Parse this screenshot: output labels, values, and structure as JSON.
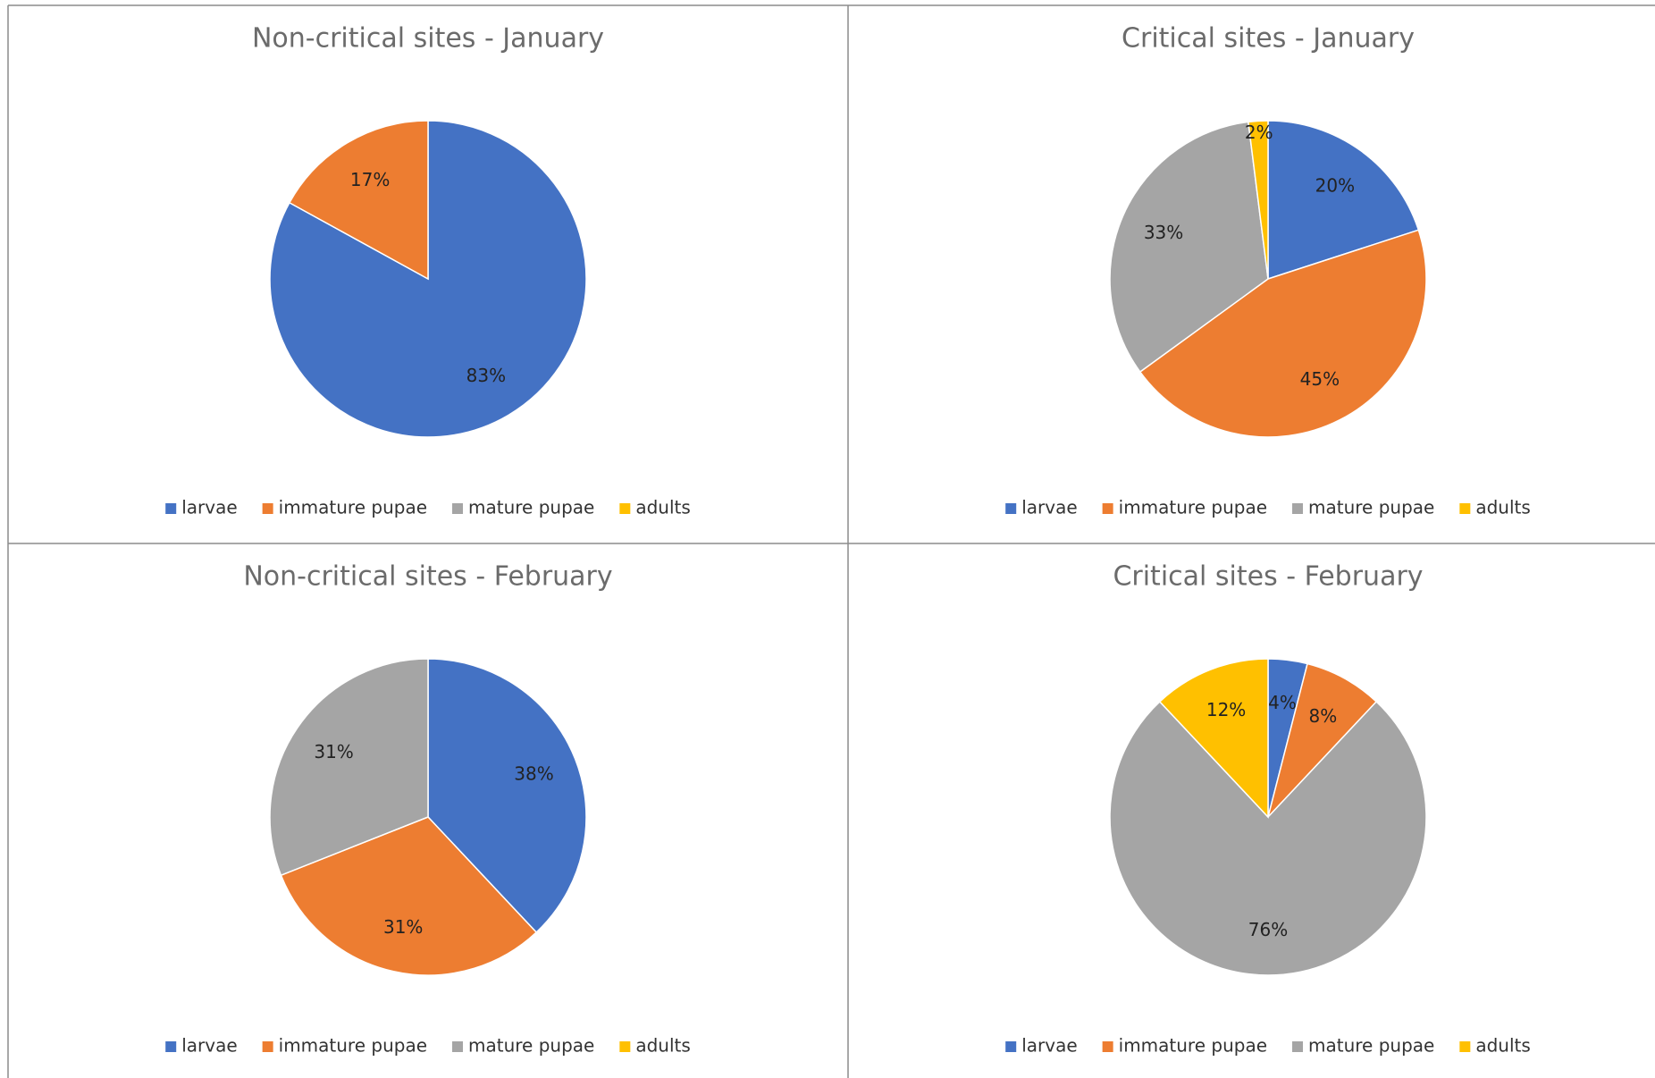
{
  "chart_data": [
    {
      "type": "pie",
      "title": "Non-critical sites - January",
      "categories": [
        "larvae",
        "immature pupae",
        "mature pupae",
        "adults"
      ],
      "values": [
        83,
        17,
        null,
        null
      ],
      "value_labels": [
        "83%",
        "17%",
        null,
        null
      ],
      "colors": [
        "#4472c4",
        "#ed7d31",
        "#a5a5a5",
        "#ffc000"
      ]
    },
    {
      "type": "pie",
      "title": "Critical sites - January",
      "categories": [
        "larvae",
        "immature pupae",
        "mature pupae",
        "adults"
      ],
      "values": [
        20,
        45,
        33,
        2
      ],
      "value_labels": [
        "20%",
        "45%",
        "33%",
        "2%"
      ],
      "colors": [
        "#4472c4",
        "#ed7d31",
        "#a5a5a5",
        "#ffc000"
      ]
    },
    {
      "type": "pie",
      "title": "Non-critical sites - February",
      "categories": [
        "larvae",
        "immature pupae",
        "mature pupae",
        "adults"
      ],
      "values": [
        38,
        31,
        31,
        null
      ],
      "value_labels": [
        "38%",
        "31%",
        "31%",
        null
      ],
      "colors": [
        "#4472c4",
        "#ed7d31",
        "#a5a5a5",
        "#ffc000"
      ]
    },
    {
      "type": "pie",
      "title": "Critical sites - February",
      "categories": [
        "larvae",
        "immature pupae",
        "mature pupae",
        "adults"
      ],
      "values": [
        4,
        8,
        76,
        12
      ],
      "value_labels": [
        "4%",
        "8%",
        "76%",
        "12%"
      ],
      "colors": [
        "#4472c4",
        "#ed7d31",
        "#a5a5a5",
        "#ffc000"
      ]
    }
  ]
}
